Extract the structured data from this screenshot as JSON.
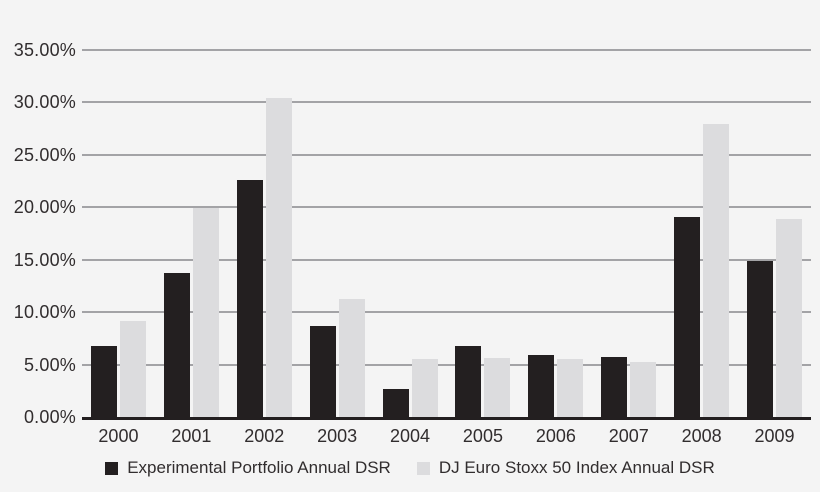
{
  "chart_data": {
    "type": "bar",
    "title": "",
    "categories": [
      "2000",
      "2001",
      "2002",
      "2003",
      "2004",
      "2005",
      "2006",
      "2007",
      "2008",
      "2009"
    ],
    "series": [
      {
        "name": "Experimental Portfolio Annual DSR",
        "color": "#231f20",
        "values": [
          6.8,
          13.7,
          22.6,
          8.7,
          2.7,
          6.8,
          5.9,
          5.7,
          19.1,
          14.9
        ]
      },
      {
        "name": "DJ Euro Stoxx 50 Index Annual DSR",
        "color": "#dcdcde",
        "values": [
          9.2,
          19.9,
          30.4,
          11.3,
          5.5,
          5.6,
          5.5,
          5.2,
          27.9,
          18.9
        ]
      }
    ],
    "ylim": [
      0,
      35
    ],
    "yticks": [
      {
        "value": 0,
        "label": "0.00%"
      },
      {
        "value": 5,
        "label": "5.00%"
      },
      {
        "value": 10,
        "label": "10.00%"
      },
      {
        "value": 15,
        "label": "15.00%"
      },
      {
        "value": 20,
        "label": "20.00%"
      },
      {
        "value": 25,
        "label": "25.00%"
      },
      {
        "value": 30,
        "label": "30.00%"
      },
      {
        "value": 35,
        "label": "35.00%"
      }
    ],
    "grid": "horizontal",
    "legend_position": "bottom"
  },
  "colors": {
    "background": "#f4f4f4",
    "axis": "#231f20",
    "gridline": "#a3a3a6",
    "text": "#312d2e"
  }
}
